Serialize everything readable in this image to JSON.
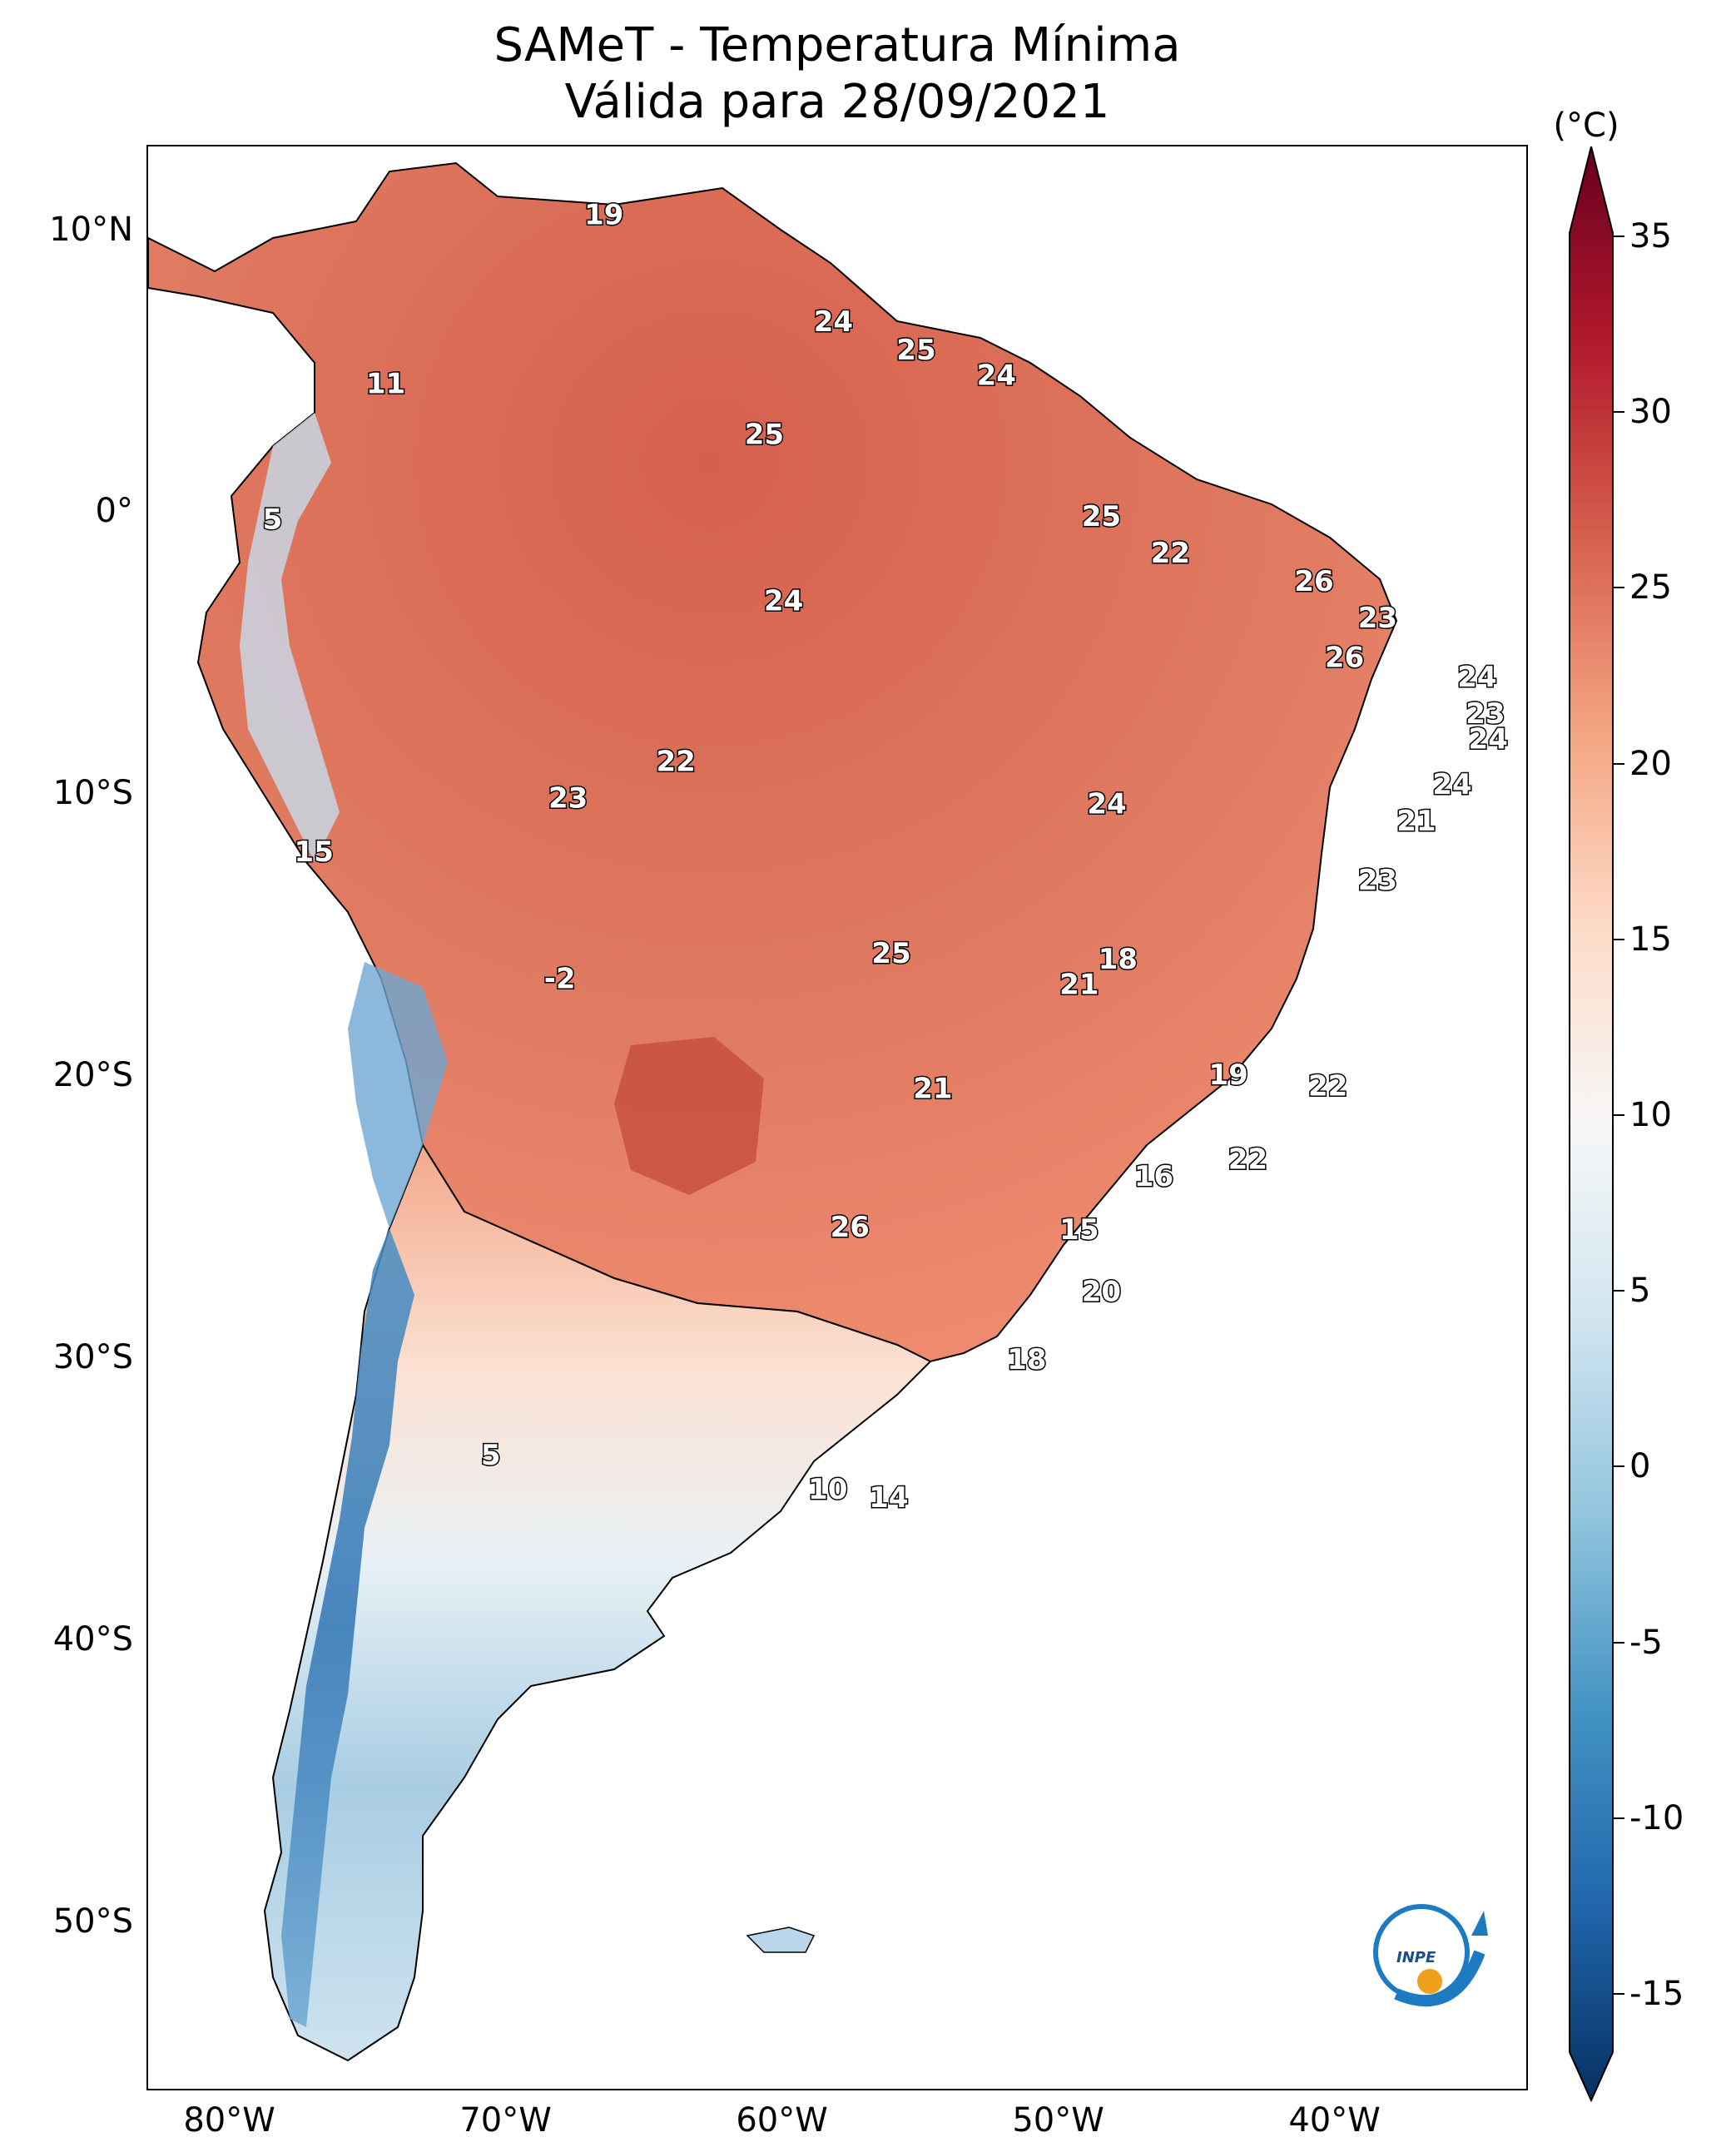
{
  "title": "SAMeT - Temperatura Mínima",
  "subtitle": "Válida para 28/09/2021",
  "colorbar": {
    "unit": "(°C)",
    "ticks": [
      "35",
      "30",
      "25",
      "20",
      "15",
      "10",
      "5",
      "0",
      "-5",
      "-10",
      "-15"
    ],
    "range": [
      -15,
      35
    ],
    "colors": [
      "#053061",
      "#2166ac",
      "#4393c3",
      "#92c5de",
      "#d1e5f0",
      "#f7f7f7",
      "#fddbc7",
      "#f4a582",
      "#d6604d",
      "#b2182b",
      "#67001f"
    ]
  },
  "axes": {
    "lat_labels": [
      "10°N",
      "0°",
      "10°S",
      "20°S",
      "30°S",
      "40°S",
      "50°S"
    ],
    "lon_labels": [
      "80°W",
      "70°W",
      "60°W",
      "50°W",
      "40°W"
    ]
  },
  "station_values": [
    {
      "label": "19",
      "lon": -66.5,
      "lat": 10.6
    },
    {
      "label": "11",
      "lon": -74.4,
      "lat": 4.6
    },
    {
      "label": "24",
      "lon": -58.2,
      "lat": 6.8
    },
    {
      "label": "25",
      "lon": -55.2,
      "lat": 5.8
    },
    {
      "label": "24",
      "lon": -52.3,
      "lat": 4.9
    },
    {
      "label": "25",
      "lon": -60.7,
      "lat": 2.8
    },
    {
      "label": "5",
      "lon": -78.5,
      "lat": -0.2
    },
    {
      "label": "25",
      "lon": -48.5,
      "lat": -0.1
    },
    {
      "label": "22",
      "lon": -46.0,
      "lat": -1.4
    },
    {
      "label": "26",
      "lon": -40.8,
      "lat": -2.4
    },
    {
      "label": "24",
      "lon": -60.0,
      "lat": -3.1
    },
    {
      "label": "23",
      "lon": -38.5,
      "lat": -3.7
    },
    {
      "label": "26",
      "lon": -39.7,
      "lat": -5.1
    },
    {
      "label": "24",
      "lon": -34.9,
      "lat": -5.8
    },
    {
      "label": "23",
      "lon": -34.6,
      "lat": -7.1
    },
    {
      "label": "24",
      "lon": -34.5,
      "lat": -8.0
    },
    {
      "label": "22",
      "lon": -63.9,
      "lat": -8.8
    },
    {
      "label": "23",
      "lon": -67.8,
      "lat": -10.1
    },
    {
      "label": "24",
      "lon": -48.3,
      "lat": -10.3
    },
    {
      "label": "24",
      "lon": -35.8,
      "lat": -9.6
    },
    {
      "label": "21",
      "lon": -37.1,
      "lat": -10.9
    },
    {
      "label": "15",
      "lon": -77.0,
      "lat": -12.0
    },
    {
      "label": "23",
      "lon": -38.5,
      "lat": -13.0
    },
    {
      "label": "-2",
      "lon": -68.1,
      "lat": -16.5
    },
    {
      "label": "25",
      "lon": -56.1,
      "lat": -15.6
    },
    {
      "label": "18",
      "lon": -47.9,
      "lat": -15.8
    },
    {
      "label": "21",
      "lon": -49.3,
      "lat": -16.7
    },
    {
      "label": "19",
      "lon": -43.9,
      "lat": -19.9
    },
    {
      "label": "21",
      "lon": -54.6,
      "lat": -20.4
    },
    {
      "label": "22",
      "lon": -40.3,
      "lat": -20.3
    },
    {
      "label": "22",
      "lon": -43.2,
      "lat": -22.9
    },
    {
      "label": "16",
      "lon": -46.6,
      "lat": -23.5
    },
    {
      "label": "26",
      "lon": -57.6,
      "lat": -25.3
    },
    {
      "label": "15",
      "lon": -49.3,
      "lat": -25.4
    },
    {
      "label": "20",
      "lon": -48.5,
      "lat": -27.6
    },
    {
      "label": "18",
      "lon": -51.2,
      "lat": -30.0
    },
    {
      "label": "5",
      "lon": -70.6,
      "lat": -33.4
    },
    {
      "label": "10",
      "lon": -58.4,
      "lat": -34.6
    },
    {
      "label": "14",
      "lon": -56.2,
      "lat": -34.9
    }
  ]
}
